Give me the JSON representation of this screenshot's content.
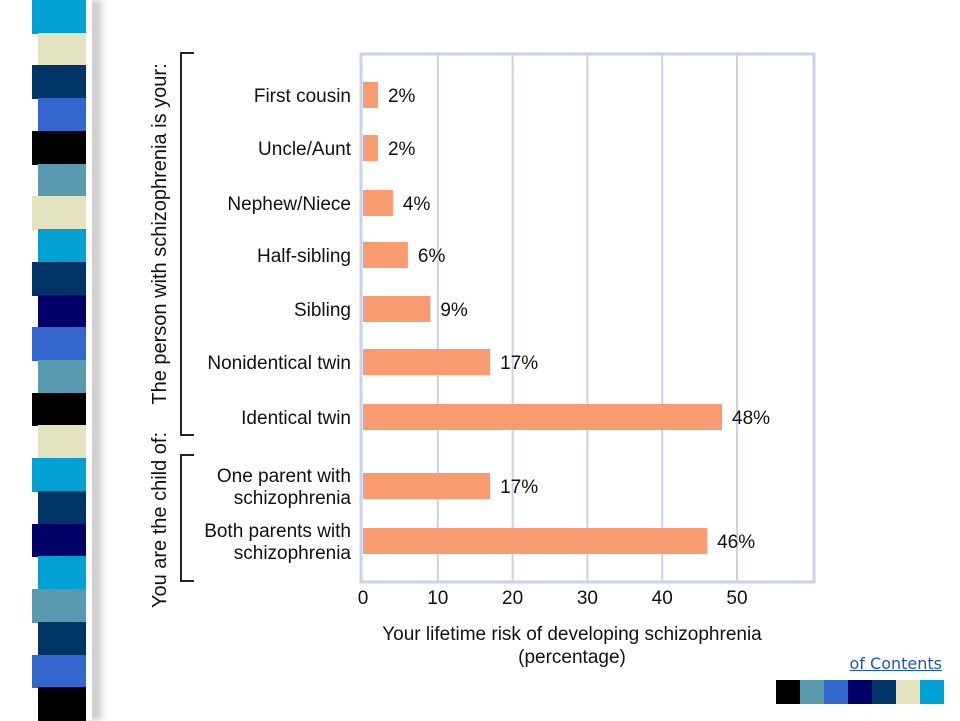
{
  "slide": {
    "toc_link": "of Contents",
    "strip_colors": [
      "#00a0d2",
      "#e3e3c0",
      "#003366",
      "#3366cc",
      "#000000",
      "#5a9aaf",
      "#e3e3c0",
      "#00a0d2",
      "#003366",
      "#000066",
      "#3366cc",
      "#5a9aaf",
      "#000000",
      "#e3e3c0",
      "#00a0d2",
      "#003366",
      "#000066",
      "#00a0d2",
      "#5a9aaf",
      "#003366",
      "#3366cc",
      "#000000"
    ],
    "swatch_colors": [
      "#000000",
      "#5a9aaf",
      "#3366cc",
      "#000066",
      "#003366",
      "#e3e3c0",
      "#00a0d2"
    ]
  },
  "chart_data": {
    "type": "bar",
    "orientation": "horizontal",
    "categories": [
      "First cousin",
      "Uncle/Aunt",
      "Nephew/Niece",
      "Half-sibling",
      "Sibling",
      "Nonidentical twin",
      "Identical twin",
      "One parent with schizophrenia",
      "Both parents with schizophrenia"
    ],
    "category_lines": [
      [
        "First cousin"
      ],
      [
        "Uncle/Aunt"
      ],
      [
        "Nephew/Niece"
      ],
      [
        "Half-sibling"
      ],
      [
        "Sibling"
      ],
      [
        "Nonidentical twin"
      ],
      [
        "Identical twin"
      ],
      [
        "One parent with",
        "schizophrenia"
      ],
      [
        "Both parents with",
        "schizophrenia"
      ]
    ],
    "values": [
      2,
      2,
      4,
      6,
      9,
      17,
      48,
      17,
      46
    ],
    "value_labels": [
      "2%",
      "2%",
      "4%",
      "6%",
      "9%",
      "17%",
      "48%",
      "17%",
      "46%"
    ],
    "groups": [
      {
        "label": "The person with schizophrenia is your:",
        "categories": [
          0,
          1,
          2,
          3,
          4,
          5,
          6
        ]
      },
      {
        "label": "You are the child of:",
        "categories": [
          7,
          8
        ]
      }
    ],
    "xlabel_lines": [
      "Your lifetime risk of developing schizophrenia",
      "(percentage)"
    ],
    "xticks": [
      0,
      10,
      20,
      30,
      40,
      50
    ],
    "xtick_labels": [
      "0",
      "10",
      "20",
      "30",
      "40",
      "50"
    ],
    "xlim": [
      0,
      60
    ],
    "grid": true,
    "bar_color": "#f99b70",
    "grid_color": "#c8d2ea"
  }
}
